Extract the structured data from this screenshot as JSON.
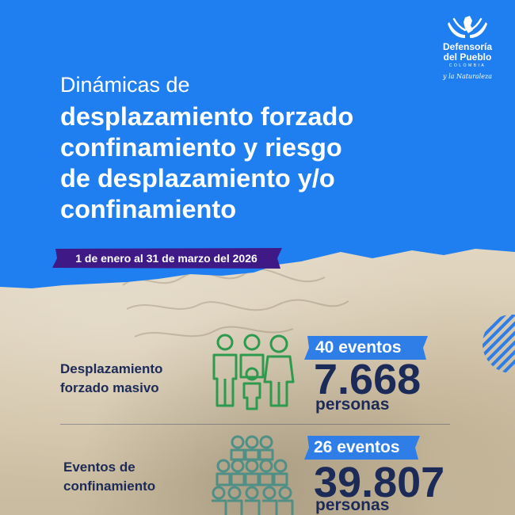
{
  "brand": {
    "name_line1": "Defensoría",
    "name_line2": "del Pueblo",
    "country": "COLOMBIA",
    "tagline": "y la Naturaleza",
    "logo_icon": "hands-holding-map-icon"
  },
  "title": {
    "intro": "Dinámicas de",
    "lines": [
      "desplazamiento forzado",
      "confinamiento y riesgo",
      "de desplazamiento y/o",
      "confinamiento"
    ]
  },
  "period": "1 de enero al 31 de marzo del 2026",
  "stats": [
    {
      "label_lines": [
        "Desplazamiento",
        "forzado masivo"
      ],
      "events": "40 eventos",
      "count": "7.668",
      "unit": "personas",
      "icon": "family-group-icon"
    },
    {
      "label_lines": [
        "Eventos de",
        "confinamiento"
      ],
      "events": "26 eventos",
      "count": "39.807",
      "unit": "personas",
      "icon": "crowd-icon"
    }
  ],
  "colors": {
    "header_blue": "#1f7ff0",
    "ribbon_purple": "#3f1a86",
    "navy_text": "#1c2a57",
    "badge_blue": "#2f7de6",
    "icon_green": "#2d9a4e",
    "icon_teal": "#4f8f86"
  }
}
